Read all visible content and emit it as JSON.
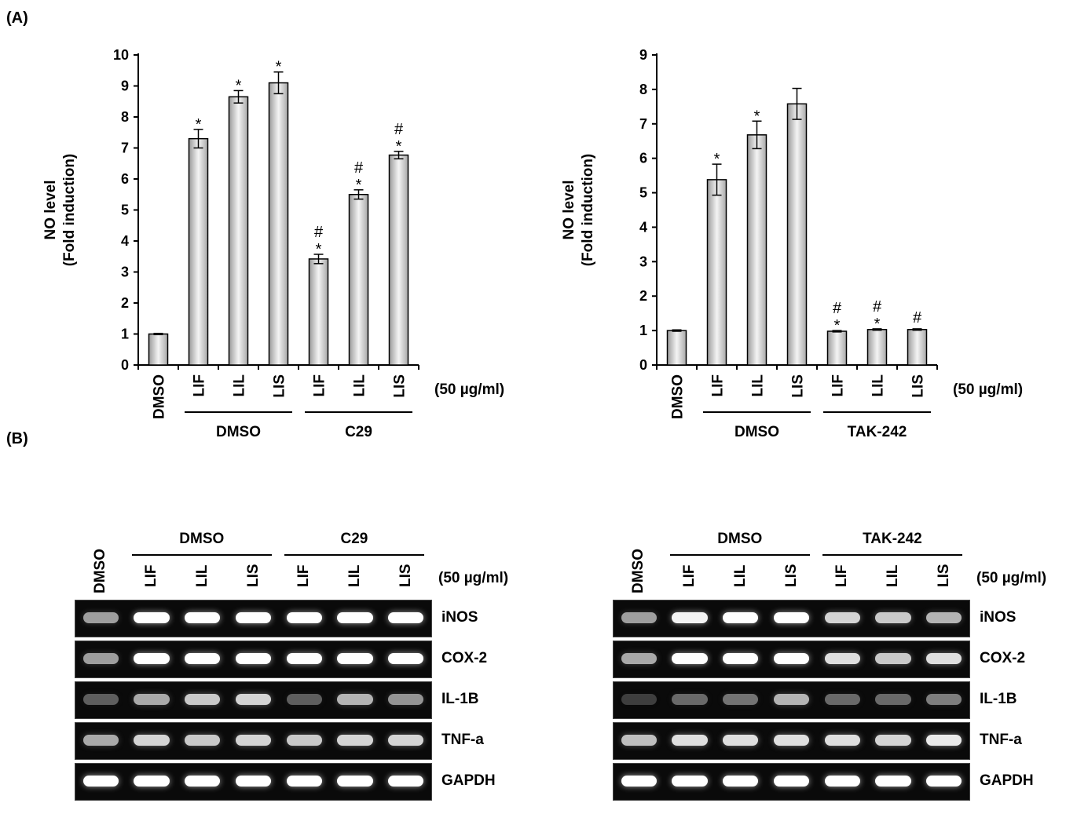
{
  "panels": {
    "a": "(A)",
    "b": "(B)"
  },
  "chart_data": [
    {
      "type": "bar",
      "ylabel_line1": "NO level",
      "ylabel_line2": "(Fold induction)",
      "ylim": [
        0,
        10
      ],
      "yticks": [
        0,
        1,
        2,
        3,
        4,
        5,
        6,
        7,
        8,
        9,
        10
      ],
      "categories": [
        "DMSO",
        "LIF",
        "LIL",
        "LIS",
        "LIF",
        "LIL",
        "LIS"
      ],
      "values": [
        1.0,
        7.3,
        8.65,
        9.1,
        3.42,
        5.5,
        6.77
      ],
      "errors": [
        0.02,
        0.3,
        0.2,
        0.35,
        0.15,
        0.15,
        0.12
      ],
      "annotations": [
        "",
        "*",
        "*",
        "*",
        "#*",
        "#*",
        "#*"
      ],
      "groups": [
        {
          "label": "DMSO",
          "start": 1,
          "end": 3
        },
        {
          "label": "C29",
          "start": 4,
          "end": 6
        }
      ],
      "concentration": "(50 µg/ml)"
    },
    {
      "type": "bar",
      "ylabel_line1": "NO level",
      "ylabel_line2": "(Fold induction)",
      "ylim": [
        0,
        9
      ],
      "yticks": [
        0,
        1,
        2,
        3,
        4,
        5,
        6,
        7,
        8,
        9
      ],
      "categories": [
        "DMSO",
        "LIF",
        "LIL",
        "LIS",
        "LIF",
        "LIL",
        "LIS"
      ],
      "values": [
        1.0,
        5.38,
        6.68,
        7.58,
        0.98,
        1.03,
        1.03
      ],
      "errors": [
        0.02,
        0.45,
        0.4,
        0.45,
        0.02,
        0.02,
        0.02
      ],
      "annotations": [
        "",
        "*",
        "*",
        "",
        "#*",
        "#*",
        "#"
      ],
      "groups": [
        {
          "label": "DMSO",
          "start": 1,
          "end": 3
        },
        {
          "label": "TAK-242",
          "start": 4,
          "end": 6
        }
      ],
      "concentration": "(50 µg/ml)"
    }
  ],
  "blots": [
    {
      "header_groups": [
        {
          "label": "DMSO"
        },
        {
          "label": "C29"
        }
      ],
      "lanes": [
        "DMSO",
        "LIF",
        "LIL",
        "LIS",
        "LIF",
        "LIL",
        "LIS"
      ],
      "concentration": "(50 µg/ml)",
      "genes": [
        "iNOS",
        "COX-2",
        "IL-1B",
        "TNF-a",
        "GAPDH"
      ],
      "intensity": [
        [
          0.55,
          1,
          1,
          1,
          1,
          1,
          1
        ],
        [
          0.55,
          1,
          1,
          1,
          1,
          1,
          1
        ],
        [
          0.25,
          0.6,
          0.75,
          0.8,
          0.25,
          0.65,
          0.5
        ],
        [
          0.6,
          0.8,
          0.75,
          0.8,
          0.75,
          0.8,
          0.8
        ],
        [
          1,
          1,
          1,
          1,
          1,
          1,
          1
        ]
      ]
    },
    {
      "header_groups": [
        {
          "label": "DMSO"
        },
        {
          "label": "TAK-242"
        }
      ],
      "lanes": [
        "DMSO",
        "LIF",
        "LIL",
        "LIS",
        "LIF",
        "LIL",
        "LIS"
      ],
      "concentration": "(50 µg/ml)",
      "genes": [
        "iNOS",
        "COX-2",
        "IL-1B",
        "TNF-a",
        "GAPDH"
      ],
      "intensity": [
        [
          0.55,
          0.95,
          1,
          1,
          0.8,
          0.75,
          0.65
        ],
        [
          0.6,
          1,
          1,
          1,
          0.85,
          0.75,
          0.85
        ],
        [
          0.1,
          0.3,
          0.35,
          0.65,
          0.3,
          0.3,
          0.4
        ],
        [
          0.7,
          0.85,
          0.85,
          0.85,
          0.85,
          0.8,
          0.9
        ],
        [
          1,
          1,
          1,
          1,
          1,
          1,
          1
        ]
      ]
    }
  ]
}
